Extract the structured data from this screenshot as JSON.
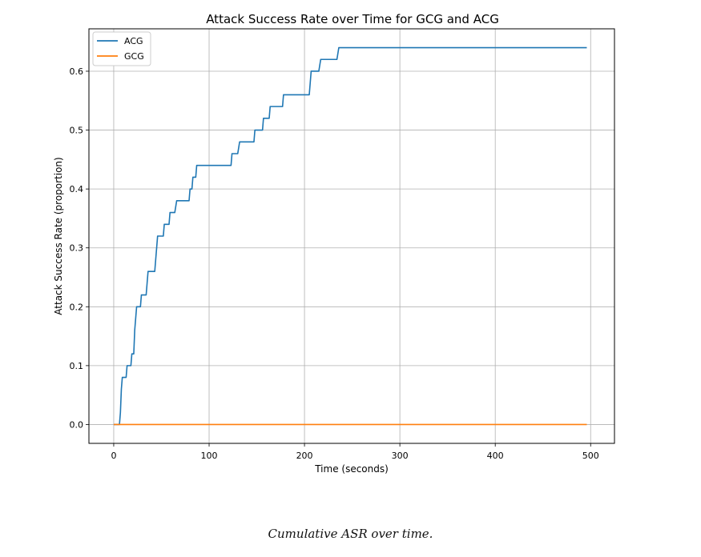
{
  "chart_data": {
    "type": "line",
    "title": "Attack Success Rate over Time for GCG and ACG",
    "xlabel": "Time (seconds)",
    "ylabel": "Attack Success Rate (proportion)",
    "xlim": [
      -26,
      525
    ],
    "ylim": [
      -0.032,
      0.672
    ],
    "xticks": [
      0,
      100,
      200,
      300,
      400,
      500
    ],
    "yticks": [
      0.0,
      0.1,
      0.2,
      0.3,
      0.4,
      0.5,
      0.6
    ],
    "grid": true,
    "legend_position": "top-left",
    "series": [
      {
        "name": "ACG",
        "color": "#1f77b4",
        "step": true,
        "points": [
          [
            0,
            0.0
          ],
          [
            6,
            0.0
          ],
          [
            7,
            0.02
          ],
          [
            8,
            0.06
          ],
          [
            9,
            0.08
          ],
          [
            13,
            0.08
          ],
          [
            14,
            0.1
          ],
          [
            18,
            0.1
          ],
          [
            19,
            0.12
          ],
          [
            21,
            0.12
          ],
          [
            22,
            0.16
          ],
          [
            24,
            0.2
          ],
          [
            28,
            0.2
          ],
          [
            29,
            0.22
          ],
          [
            34,
            0.22
          ],
          [
            35,
            0.24
          ],
          [
            36,
            0.26
          ],
          [
            43,
            0.26
          ],
          [
            44,
            0.28
          ],
          [
            46,
            0.32
          ],
          [
            52,
            0.32
          ],
          [
            53,
            0.34
          ],
          [
            58,
            0.34
          ],
          [
            59,
            0.36
          ],
          [
            64,
            0.36
          ],
          [
            66,
            0.38
          ],
          [
            79,
            0.38
          ],
          [
            80,
            0.4
          ],
          [
            82,
            0.4
          ],
          [
            83,
            0.42
          ],
          [
            86,
            0.42
          ],
          [
            87,
            0.44
          ],
          [
            123,
            0.44
          ],
          [
            124,
            0.46
          ],
          [
            130,
            0.46
          ],
          [
            132,
            0.48
          ],
          [
            147,
            0.48
          ],
          [
            148,
            0.5
          ],
          [
            156,
            0.5
          ],
          [
            157,
            0.52
          ],
          [
            163,
            0.52
          ],
          [
            164,
            0.54
          ],
          [
            177,
            0.54
          ],
          [
            178,
            0.56
          ],
          [
            205,
            0.56
          ],
          [
            206,
            0.58
          ],
          [
            207,
            0.6
          ],
          [
            215,
            0.6
          ],
          [
            217,
            0.62
          ],
          [
            234,
            0.62
          ],
          [
            236,
            0.64
          ],
          [
            496,
            0.64
          ]
        ]
      },
      {
        "name": "GCG",
        "color": "#ff7f0e",
        "step": false,
        "points": [
          [
            0,
            0.0
          ],
          [
            496,
            0.0
          ]
        ]
      }
    ]
  },
  "caption": "Cumulative ASR over time."
}
